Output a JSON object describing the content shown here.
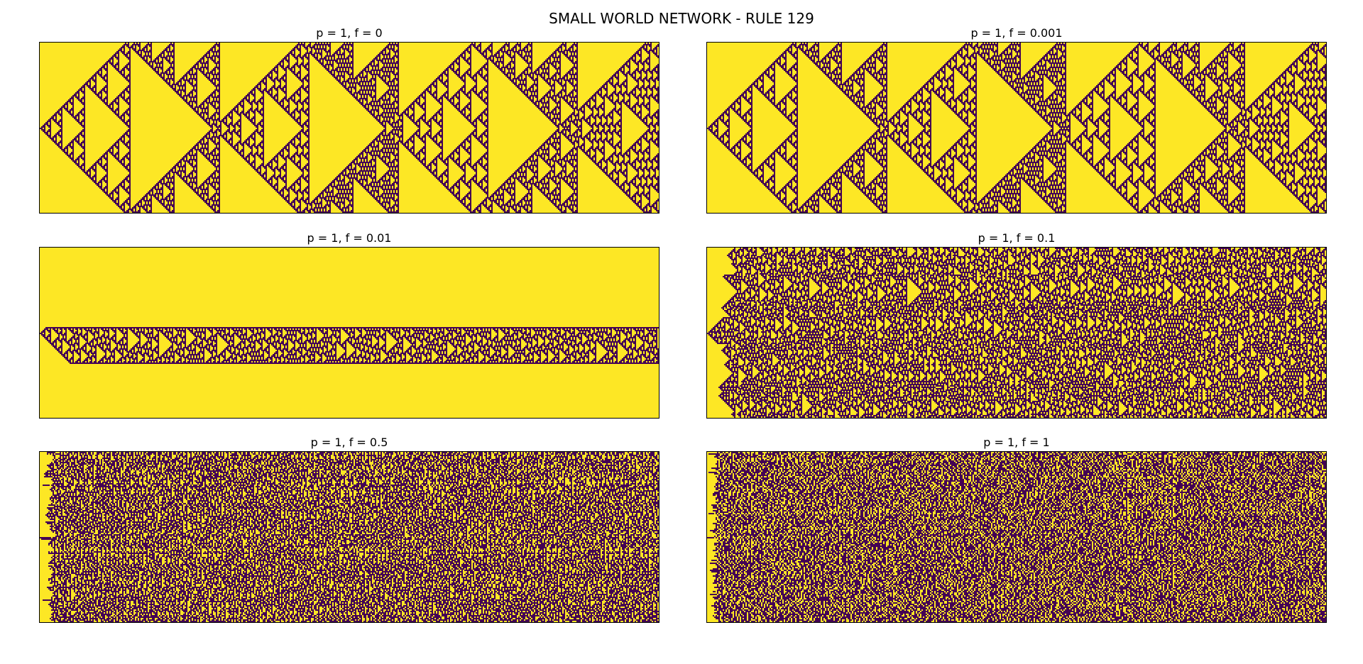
{
  "chart_data": {
    "type": "heatmap",
    "title": "SMALL WORLD NETWORK - RULE 129",
    "colors": {
      "state_1": "#fde725",
      "state_0": "#440154"
    },
    "panels": [
      {
        "title": "p = 1, f = 0",
        "p": 1,
        "f": 0
      },
      {
        "title": "p = 1, f = 0.001",
        "p": 1,
        "f": 0.001
      },
      {
        "title": "p = 1, f = 0.01",
        "p": 1,
        "f": 0.01
      },
      {
        "title": "p = 1, f = 0.1",
        "p": 1,
        "f": 0.1
      },
      {
        "title": "p = 1, f = 0.5",
        "p": 1,
        "f": 0.5
      },
      {
        "title": "p = 1, f = 1",
        "p": 1,
        "f": 1
      }
    ]
  }
}
